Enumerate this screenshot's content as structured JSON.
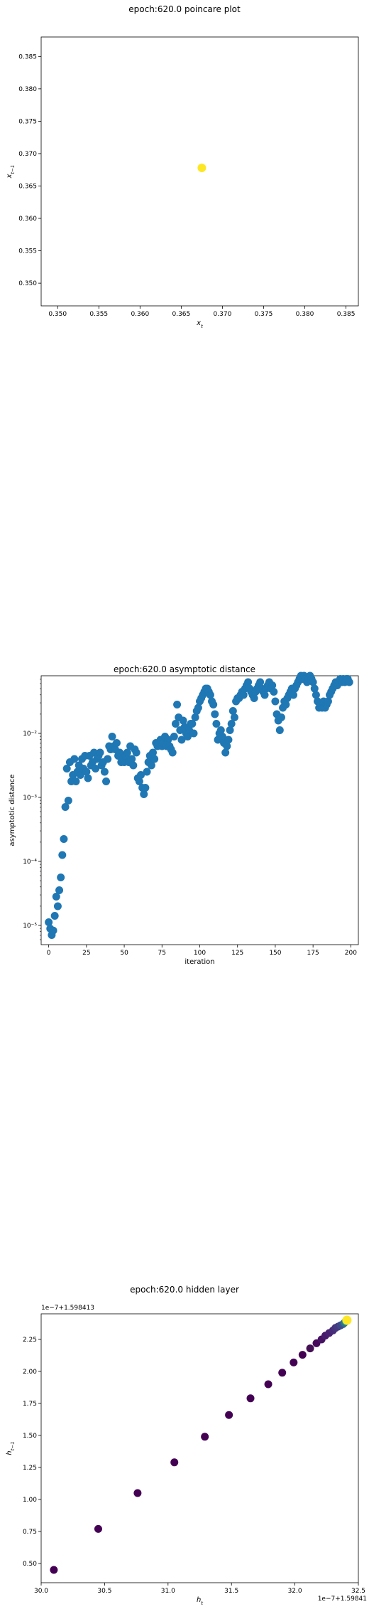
{
  "chart_data": [
    {
      "type": "scatter",
      "title": "epoch:620.0 poincare plot",
      "xlabel": "x_t",
      "ylabel": "x_{t-1}",
      "xlim": [
        0.348,
        0.3865
      ],
      "ylim": [
        0.3465,
        0.388
      ],
      "xticks": [
        "0.350",
        "0.355",
        "0.360",
        "0.365",
        "0.370",
        "0.375",
        "0.380",
        "0.385"
      ],
      "yticks": [
        "0.350",
        "0.355",
        "0.360",
        "0.365",
        "0.370",
        "0.375",
        "0.380",
        "0.385"
      ],
      "points": [
        {
          "x": 0.3675,
          "y": 0.3678,
          "color": "#fde725"
        }
      ]
    },
    {
      "type": "scatter",
      "title": "epoch:620.0 asymptotic distance",
      "xlabel": "iteration",
      "ylabel": "asymptotic distance",
      "yscale": "log",
      "xlim": [
        -5,
        205
      ],
      "ylim_log10": [
        -5.3,
        -1.1
      ],
      "xticks": [
        "0",
        "25",
        "50",
        "75",
        "100",
        "125",
        "150",
        "175",
        "200"
      ],
      "yticks": [
        "10⁻⁵",
        "10⁻⁴",
        "10⁻³",
        "10⁻²"
      ],
      "color": "#1f77b4",
      "x": [
        0,
        1,
        2,
        3,
        4,
        5,
        6,
        7,
        8,
        9,
        10,
        11,
        12,
        13,
        14,
        15,
        16,
        17,
        18,
        19,
        20,
        21,
        22,
        23,
        24,
        25,
        26,
        27,
        28,
        29,
        30,
        31,
        32,
        33,
        34,
        35,
        36,
        37,
        38,
        39,
        40,
        41,
        42,
        43,
        44,
        45,
        46,
        47,
        48,
        49,
        50,
        51,
        52,
        53,
        54,
        55,
        56,
        57,
        58,
        59,
        60,
        61,
        62,
        63,
        64,
        65,
        66,
        67,
        68,
        69,
        70,
        71,
        72,
        73,
        74,
        75,
        76,
        77,
        78,
        79,
        80,
        81,
        82,
        83,
        84,
        85,
        86,
        87,
        88,
        89,
        90,
        91,
        92,
        93,
        94,
        95,
        96,
        97,
        98,
        99,
        100,
        101,
        102,
        103,
        104,
        105,
        106,
        107,
        108,
        109,
        110,
        111,
        112,
        113,
        114,
        115,
        116,
        117,
        118,
        119,
        120,
        121,
        122,
        123,
        124,
        125,
        126,
        127,
        128,
        129,
        130,
        131,
        132,
        133,
        134,
        135,
        136,
        137,
        138,
        139,
        140,
        141,
        142,
        143,
        144,
        145,
        146,
        147,
        148,
        149,
        150,
        151,
        152,
        153,
        154,
        155,
        156,
        157,
        158,
        159,
        160,
        161,
        162,
        163,
        164,
        165,
        166,
        167,
        168,
        169,
        170,
        171,
        172,
        173,
        174,
        175,
        176,
        177,
        178,
        179,
        180,
        181,
        182,
        183,
        184,
        185,
        186,
        187,
        188,
        189,
        190,
        191,
        192,
        193,
        194,
        195,
        196,
        197,
        198,
        199
      ],
      "log10_y": [
        -4.95,
        -5.05,
        -5.15,
        -5.08,
        -4.85,
        -4.55,
        -4.7,
        -4.45,
        -4.25,
        -3.9,
        -3.65,
        -3.15,
        -2.55,
        -3.05,
        -2.45,
        -2.75,
        -2.65,
        -2.4,
        -2.75,
        -2.6,
        -2.5,
        -2.65,
        -2.4,
        -2.55,
        -2.35,
        -2.6,
        -2.7,
        -2.35,
        -2.5,
        -2.45,
        -2.3,
        -2.55,
        -2.4,
        -2.35,
        -2.3,
        -2.5,
        -2.45,
        -2.6,
        -2.75,
        -2.4,
        -2.2,
        -2.25,
        -2.05,
        -2.2,
        -2.25,
        -2.15,
        -2.35,
        -2.3,
        -2.45,
        -2.4,
        -2.45,
        -2.35,
        -2.3,
        -2.45,
        -2.2,
        -2.4,
        -2.5,
        -2.25,
        -2.3,
        -2.7,
        -2.75,
        -2.65,
        -2.85,
        -2.95,
        -2.85,
        -2.6,
        -2.45,
        -2.35,
        -2.5,
        -2.3,
        -2.4,
        -2.15,
        -2.2,
        -2.15,
        -2.1,
        -2.2,
        -2.15,
        -2.05,
        -2.2,
        -2.1,
        -2.2,
        -2.25,
        -2.3,
        -2.05,
        -1.85,
        -1.55,
        -1.75,
        -1.95,
        -2.1,
        -1.8,
        -1.9,
        -2.0,
        -2.05,
        -1.95,
        -1.85,
        -1.85,
        -2.0,
        -1.75,
        -1.65,
        -1.6,
        -1.5,
        -1.45,
        -1.4,
        -1.35,
        -1.3,
        -1.3,
        -1.35,
        -1.4,
        -1.5,
        -1.55,
        -1.7,
        -1.85,
        -2.1,
        -2.0,
        -1.95,
        -2.05,
        -2.15,
        -2.3,
        -2.2,
        -2.1,
        -1.95,
        -1.85,
        -1.65,
        -1.75,
        -1.5,
        -1.45,
        -1.45,
        -1.4,
        -1.35,
        -1.4,
        -1.3,
        -1.25,
        -1.2,
        -1.3,
        -1.35,
        -1.4,
        -1.45,
        -1.35,
        -1.3,
        -1.25,
        -1.2,
        -1.3,
        -1.35,
        -1.4,
        -1.3,
        -1.25,
        -1.2,
        -1.3,
        -1.25,
        -1.35,
        -1.5,
        -1.7,
        -1.8,
        -1.95,
        -1.75,
        -1.6,
        -1.5,
        -1.55,
        -1.45,
        -1.4,
        -1.35,
        -1.3,
        -1.4,
        -1.3,
        -1.25,
        -1.2,
        -1.15,
        -1.1,
        -1.15,
        -1.1,
        -1.15,
        -1.2,
        -1.15,
        -1.1,
        -1.15,
        -1.2,
        -1.3,
        -1.4,
        -1.5,
        -1.6,
        -1.55,
        -1.6,
        -1.5,
        -1.6,
        -1.55,
        -1.5,
        -1.4,
        -1.35,
        -1.3,
        -1.25,
        -1.2,
        -1.25,
        -1.2,
        -1.15,
        -1.2,
        -1.15,
        -1.2,
        -1.15,
        -1.15,
        -1.2
      ]
    },
    {
      "type": "scatter",
      "title": "epoch:620.0 hidden layer",
      "xlabel": "h_t",
      "ylabel": "h_{t-1}",
      "x_offset_label": "1e−7+1.59841",
      "y_offset_label": "1e−7+1.598413",
      "xlim": [
        30.0,
        32.5
      ],
      "ylim": [
        0.35,
        2.45
      ],
      "xticks": [
        "30.0",
        "30.5",
        "31.0",
        "31.5",
        "32.0",
        "32.5"
      ],
      "yticks": [
        "0.50",
        "0.75",
        "1.00",
        "1.25",
        "1.50",
        "1.75",
        "2.00",
        "2.25"
      ],
      "x": [
        30.1,
        30.45,
        30.76,
        31.05,
        31.29,
        31.48,
        31.65,
        31.79,
        31.9,
        31.99,
        32.06,
        32.12,
        32.17,
        32.21,
        32.24,
        32.27,
        32.3,
        32.32,
        32.34,
        32.36,
        32.38,
        32.39,
        32.4,
        32.41
      ],
      "y": [
        0.45,
        0.77,
        1.05,
        1.29,
        1.49,
        1.66,
        1.79,
        1.9,
        1.99,
        2.07,
        2.13,
        2.18,
        2.22,
        2.25,
        2.28,
        2.3,
        2.32,
        2.34,
        2.35,
        2.36,
        2.37,
        2.38,
        2.39,
        2.4
      ],
      "colors": [
        "#440154",
        "#440154",
        "#440154",
        "#440154",
        "#440154",
        "#440154",
        "#440154",
        "#440154",
        "#440154",
        "#440154",
        "#440154",
        "#441054",
        "#46075a",
        "#461363",
        "#471a6b",
        "#482173",
        "#472a7a",
        "#45337d",
        "#443983",
        "#3f4788",
        "#3b528b",
        "#2c728e",
        "#21918c",
        "#fde725"
      ]
    }
  ]
}
